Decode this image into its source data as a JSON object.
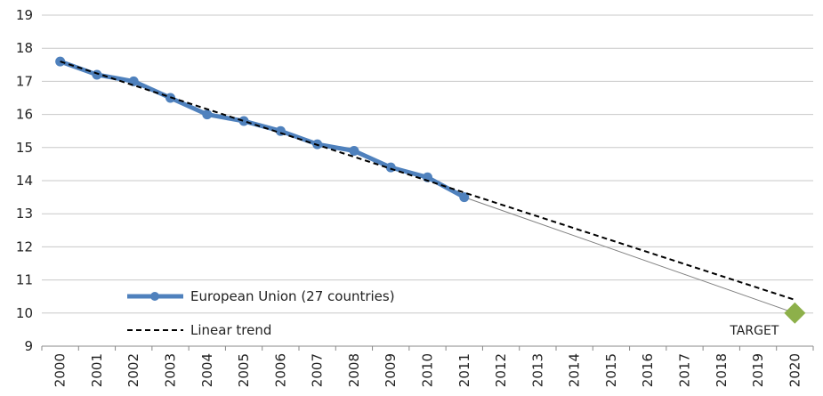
{
  "chart_data": {
    "type": "line",
    "title": "",
    "xlabel": "",
    "ylabel": "",
    "x": [
      "2000",
      "2001",
      "2002",
      "2003",
      "2004",
      "2005",
      "2006",
      "2007",
      "2008",
      "2009",
      "2010",
      "2011",
      "2012",
      "2013",
      "2014",
      "2015",
      "2016",
      "2017",
      "2018",
      "2019",
      "2020"
    ],
    "ylim": [
      9,
      19
    ],
    "yticks": [
      9,
      10,
      11,
      12,
      13,
      14,
      15,
      16,
      17,
      18,
      19
    ],
    "grid": true,
    "legend_position": "bottom-left",
    "series": [
      {
        "name": "European Union (27 countries)",
        "style": "line-markers",
        "color": "#4f81bd",
        "points": [
          {
            "x": "2000",
            "y": 17.6
          },
          {
            "x": "2001",
            "y": 17.2
          },
          {
            "x": "2002",
            "y": 17.0
          },
          {
            "x": "2003",
            "y": 16.5
          },
          {
            "x": "2004",
            "y": 16.0
          },
          {
            "x": "2005",
            "y": 15.8
          },
          {
            "x": "2006",
            "y": 15.5
          },
          {
            "x": "2007",
            "y": 15.1
          },
          {
            "x": "2008",
            "y": 14.9
          },
          {
            "x": "2009",
            "y": 14.4
          },
          {
            "x": "2010",
            "y": 14.1
          },
          {
            "x": "2011",
            "y": 13.5
          }
        ]
      },
      {
        "name": "Linear trend",
        "style": "dashed",
        "color": "#000000",
        "points": [
          {
            "x": "2000",
            "y": 17.6
          },
          {
            "x": "2020",
            "y": 10.4
          }
        ]
      }
    ],
    "projection_line": {
      "color": "#808080",
      "points": [
        {
          "x": "2011",
          "y": 13.5
        },
        {
          "x": "2020",
          "y": 10.0
        }
      ]
    },
    "target": {
      "label": "TARGET",
      "x": "2020",
      "y": 10.0,
      "color": "#8db04a"
    }
  }
}
